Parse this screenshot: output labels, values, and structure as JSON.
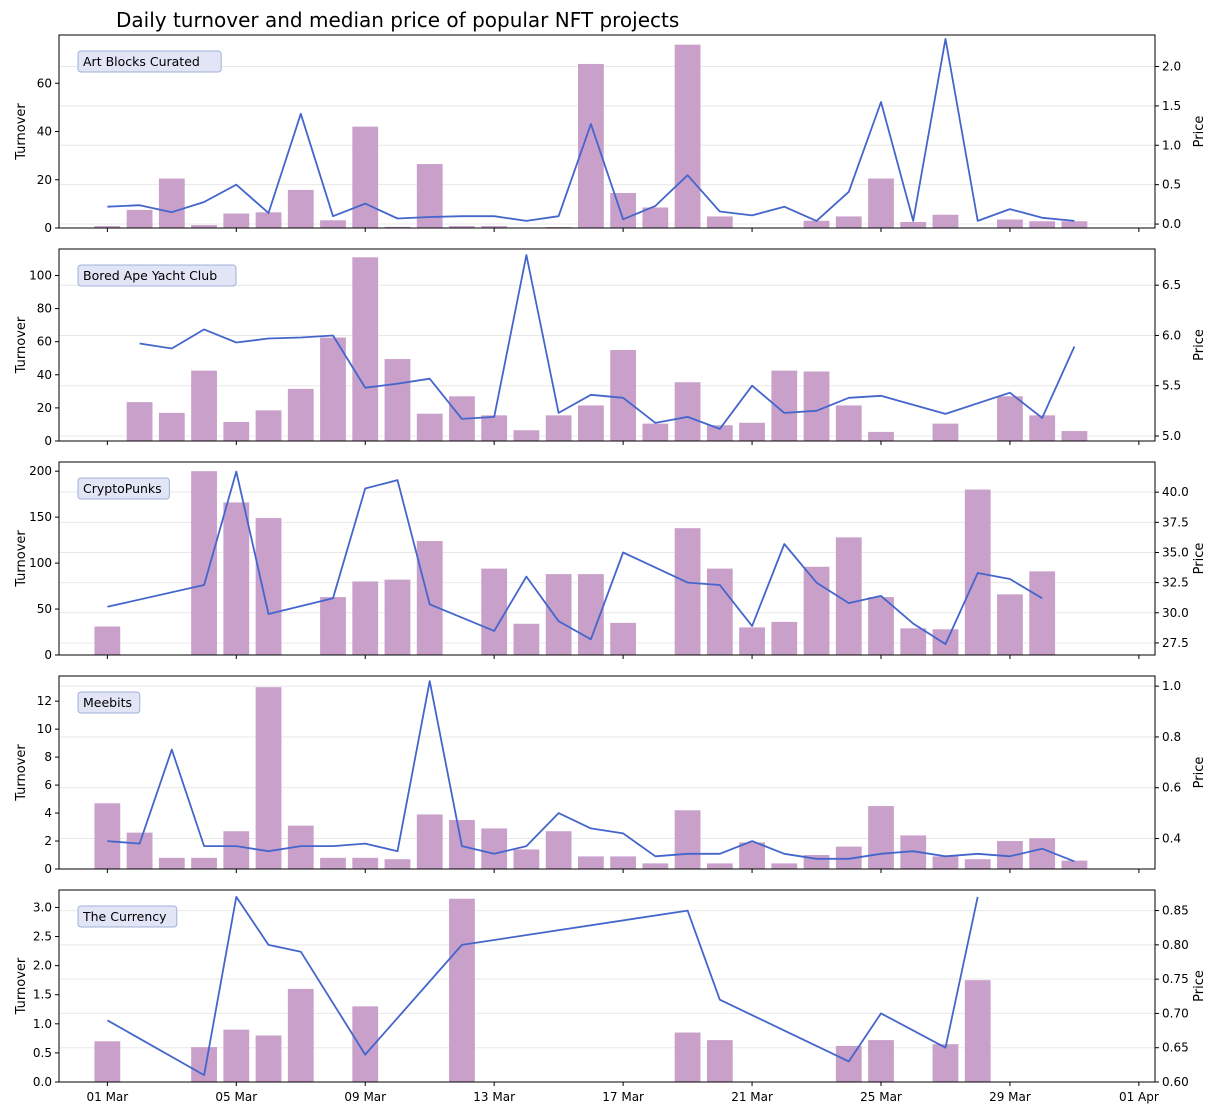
{
  "title": "Daily turnover and median price of popular NFT projects",
  "chart_data": [
    {
      "type": "bar",
      "label": "Art Blocks Curated",
      "ylabel": "Turnover",
      "y2label": "Price",
      "ylim": [
        0,
        80
      ],
      "yticks": [
        0,
        20,
        40,
        60
      ],
      "y2lim": [
        -0.05,
        2.4
      ],
      "y2ticks": [
        "0.0",
        "0.5",
        "1.0",
        "1.5",
        "2.0"
      ],
      "turnover": [
        [
          1,
          0.8
        ],
        [
          2,
          7.5
        ],
        [
          3,
          20.5
        ],
        [
          4,
          1.2
        ],
        [
          5,
          6
        ],
        [
          6,
          6.5
        ],
        [
          7,
          15.8
        ],
        [
          8,
          3.2
        ],
        [
          9,
          42
        ],
        [
          10,
          0.5
        ],
        [
          11,
          26.5
        ],
        [
          12,
          0.8
        ],
        [
          13,
          0.8
        ],
        [
          15,
          0.4
        ],
        [
          16,
          68
        ],
        [
          17,
          14.5
        ],
        [
          18,
          8.5
        ],
        [
          19,
          76
        ],
        [
          20,
          4.8
        ],
        [
          22,
          0.2
        ],
        [
          23,
          3
        ],
        [
          24,
          4.8
        ],
        [
          25,
          20.5
        ],
        [
          26,
          2.5
        ],
        [
          27,
          5.5
        ],
        [
          29,
          3.5
        ],
        [
          30,
          2.8
        ],
        [
          31,
          2.8
        ]
      ],
      "price": [
        [
          1,
          0.22
        ],
        [
          2,
          0.24
        ],
        [
          3,
          0.15
        ],
        [
          4,
          0.28
        ],
        [
          5,
          0.5
        ],
        [
          6,
          0.14
        ],
        [
          7,
          1.4
        ],
        [
          8,
          0.1
        ],
        [
          9,
          0.26
        ],
        [
          10,
          0.07
        ],
        [
          11,
          0.09
        ],
        [
          12,
          0.1
        ],
        [
          13,
          0.1
        ],
        [
          14,
          0.04
        ],
        [
          15,
          0.1
        ],
        [
          16,
          1.27
        ],
        [
          17,
          0.06
        ],
        [
          18,
          0.23
        ],
        [
          19,
          0.62
        ],
        [
          20,
          0.16
        ],
        [
          21,
          0.11
        ],
        [
          22,
          0.22
        ],
        [
          23,
          0.04
        ],
        [
          24,
          0.41
        ],
        [
          25,
          1.55
        ],
        [
          26,
          0.04
        ],
        [
          27,
          2.35
        ],
        [
          28,
          0.04
        ],
        [
          29,
          0.19
        ],
        [
          30,
          0.08
        ],
        [
          31,
          0.04
        ]
      ]
    },
    {
      "type": "bar",
      "label": "Bored Ape Yacht Club",
      "ylabel": "Turnover",
      "y2label": "Price",
      "ylim": [
        0,
        116
      ],
      "yticks": [
        0,
        20,
        40,
        60,
        80,
        100
      ],
      "y2lim": [
        4.95,
        6.86
      ],
      "y2ticks": [
        "5.0",
        "5.5",
        "6.0",
        "6.5"
      ],
      "turnover": [
        [
          2,
          23.5
        ],
        [
          3,
          17
        ],
        [
          4,
          42.5
        ],
        [
          5,
          11.5
        ],
        [
          6,
          18.5
        ],
        [
          7,
          31.5
        ],
        [
          8,
          62.5
        ],
        [
          9,
          111
        ],
        [
          10,
          49.5
        ],
        [
          11,
          16.5
        ],
        [
          12,
          27
        ],
        [
          13,
          15.5
        ],
        [
          14,
          6.5
        ],
        [
          15,
          15.5
        ],
        [
          16,
          21.5
        ],
        [
          17,
          55
        ],
        [
          18,
          10.5
        ],
        [
          19,
          35.5
        ],
        [
          20,
          9.5
        ],
        [
          21,
          11
        ],
        [
          22,
          42.5
        ],
        [
          23,
          42
        ],
        [
          24,
          21.5
        ],
        [
          25,
          5.5
        ],
        [
          27,
          10.5
        ],
        [
          29,
          27
        ],
        [
          30,
          15.5
        ],
        [
          31,
          6
        ]
      ],
      "price": [
        [
          2,
          5.92
        ],
        [
          3,
          5.87
        ],
        [
          4,
          6.06
        ],
        [
          5,
          5.93
        ],
        [
          6,
          5.97
        ],
        [
          7,
          5.98
        ],
        [
          8,
          6
        ],
        [
          9,
          5.48
        ],
        [
          10,
          5.52
        ],
        [
          11,
          5.57
        ],
        [
          12,
          5.17
        ],
        [
          13,
          5.19
        ],
        [
          14,
          6.8
        ],
        [
          15,
          5.23
        ],
        [
          16,
          5.41
        ],
        [
          17,
          5.38
        ],
        [
          18,
          5.13
        ],
        [
          19,
          5.19
        ],
        [
          20,
          5.07
        ],
        [
          21,
          5.5
        ],
        [
          22,
          5.23
        ],
        [
          23,
          5.25
        ],
        [
          24,
          5.38
        ],
        [
          25,
          5.4
        ],
        [
          27,
          5.22
        ],
        [
          29,
          5.43
        ],
        [
          30,
          5.18
        ],
        [
          31,
          5.89
        ]
      ]
    },
    {
      "type": "bar",
      "label": "CryptoPunks",
      "ylabel": "Turnover",
      "y2label": "Price",
      "ylim": [
        0,
        210
      ],
      "yticks": [
        0,
        50,
        100,
        150,
        200
      ],
      "y2lim": [
        26.5,
        42.5
      ],
      "y2ticks": [
        "27.5",
        "30.0",
        "32.5",
        "35.0",
        "37.5",
        "40.0"
      ],
      "turnover": [
        [
          1,
          31
        ],
        [
          4,
          200
        ],
        [
          5,
          166
        ],
        [
          6,
          149
        ],
        [
          8,
          63
        ],
        [
          9,
          80
        ],
        [
          10,
          82
        ],
        [
          11,
          124
        ],
        [
          13,
          94
        ],
        [
          14,
          34
        ],
        [
          15,
          88
        ],
        [
          16,
          88
        ],
        [
          17,
          35
        ],
        [
          19,
          138
        ],
        [
          20,
          94
        ],
        [
          21,
          30
        ],
        [
          22,
          36
        ],
        [
          23,
          96
        ],
        [
          24,
          128
        ],
        [
          25,
          63
        ],
        [
          26,
          29
        ],
        [
          27,
          28
        ],
        [
          28,
          180
        ],
        [
          29,
          66
        ],
        [
          30,
          91
        ]
      ],
      "price": [
        [
          1,
          30.5
        ],
        [
          4,
          32.3
        ],
        [
          5,
          41.7
        ],
        [
          6,
          29.9
        ],
        [
          8,
          31.2
        ],
        [
          9,
          40.3
        ],
        [
          10,
          41
        ],
        [
          11,
          30.7
        ],
        [
          13,
          28.5
        ],
        [
          14,
          33
        ],
        [
          15,
          29.3
        ],
        [
          16,
          27.8
        ],
        [
          17,
          35
        ],
        [
          19,
          32.5
        ],
        [
          20,
          32.3
        ],
        [
          21,
          28.9
        ],
        [
          22,
          35.7
        ],
        [
          23,
          32.5
        ],
        [
          24,
          30.8
        ],
        [
          25,
          31.4
        ],
        [
          26,
          29.1
        ],
        [
          27,
          27.4
        ],
        [
          28,
          33.3
        ],
        [
          29,
          32.8
        ],
        [
          30,
          31.2
        ]
      ]
    },
    {
      "type": "bar",
      "label": "Meebits",
      "ylabel": "Turnover",
      "y2label": "Price",
      "ylim": [
        0,
        13.8
      ],
      "yticks": [
        0,
        2,
        4,
        6,
        8,
        10,
        12
      ],
      "y2lim": [
        0.28,
        1.04
      ],
      "y2ticks": [
        "0.4",
        "0.6",
        "0.8",
        "1.0"
      ],
      "turnover": [
        [
          1,
          4.7
        ],
        [
          2,
          2.6
        ],
        [
          3,
          0.8
        ],
        [
          4,
          0.8
        ],
        [
          5,
          2.7
        ],
        [
          6,
          13
        ],
        [
          7,
          3.1
        ],
        [
          8,
          0.8
        ],
        [
          9,
          0.8
        ],
        [
          10,
          0.7
        ],
        [
          11,
          3.9
        ],
        [
          12,
          3.5
        ],
        [
          13,
          2.9
        ],
        [
          14,
          1.4
        ],
        [
          15,
          2.7
        ],
        [
          16,
          0.9
        ],
        [
          17,
          0.9
        ],
        [
          18,
          0.4
        ],
        [
          19,
          4.2
        ],
        [
          20,
          0.4
        ],
        [
          21,
          1.9
        ],
        [
          22,
          0.4
        ],
        [
          23,
          1
        ],
        [
          24,
          1.6
        ],
        [
          25,
          4.5
        ],
        [
          26,
          2.4
        ],
        [
          27,
          0.9
        ],
        [
          28,
          0.7
        ],
        [
          29,
          2
        ],
        [
          30,
          2.2
        ],
        [
          31,
          0.6
        ]
      ],
      "price": [
        [
          1,
          0.39
        ],
        [
          2,
          0.38
        ],
        [
          3,
          0.75
        ],
        [
          4,
          0.37
        ],
        [
          5,
          0.37
        ],
        [
          6,
          0.35
        ],
        [
          7,
          0.37
        ],
        [
          8,
          0.37
        ],
        [
          9,
          0.38
        ],
        [
          10,
          0.35
        ],
        [
          11,
          1.02
        ],
        [
          12,
          0.37
        ],
        [
          13,
          0.34
        ],
        [
          14,
          0.37
        ],
        [
          15,
          0.5
        ],
        [
          16,
          0.44
        ],
        [
          17,
          0.42
        ],
        [
          18,
          0.33
        ],
        [
          19,
          0.34
        ],
        [
          20,
          0.34
        ],
        [
          21,
          0.39
        ],
        [
          22,
          0.34
        ],
        [
          23,
          0.32
        ],
        [
          24,
          0.32
        ],
        [
          25,
          0.34
        ],
        [
          26,
          0.35
        ],
        [
          27,
          0.33
        ],
        [
          28,
          0.34
        ],
        [
          29,
          0.33
        ],
        [
          30,
          0.36
        ],
        [
          31,
          0.31
        ]
      ]
    },
    {
      "type": "bar",
      "label": "The Currency",
      "ylabel": "Turnover",
      "y2label": "Price",
      "ylim": [
        0,
        3.3
      ],
      "yticks": [
        "0.0",
        "0.5",
        "1.0",
        "1.5",
        "2.0",
        "2.5",
        "3.0"
      ],
      "y2lim": [
        0.6,
        0.88
      ],
      "y2ticks": [
        "0.60",
        "0.65",
        "0.70",
        "0.75",
        "0.80",
        "0.85"
      ],
      "turnover": [
        [
          1,
          0.7
        ],
        [
          4,
          0.6
        ],
        [
          5,
          0.9
        ],
        [
          6,
          0.8
        ],
        [
          7,
          1.6
        ],
        [
          9,
          1.3
        ],
        [
          12,
          3.15
        ],
        [
          19,
          0.85
        ],
        [
          20,
          0.72
        ],
        [
          24,
          0.62
        ],
        [
          25,
          0.72
        ],
        [
          27,
          0.65
        ],
        [
          28,
          1.75
        ]
      ],
      "price": [
        [
          1,
          0.69
        ],
        [
          4,
          0.61
        ],
        [
          5,
          0.87
        ],
        [
          6,
          0.8
        ],
        [
          7,
          0.79
        ],
        [
          9,
          0.64
        ],
        [
          12,
          0.8
        ],
        [
          19,
          0.85
        ],
        [
          20,
          0.72
        ],
        [
          24,
          0.63
        ],
        [
          25,
          0.7
        ],
        [
          27,
          0.65
        ],
        [
          28,
          0.87
        ]
      ]
    }
  ],
  "xaxis": {
    "ticks": [
      [
        1,
        "01 Mar"
      ],
      [
        5,
        "05 Mar"
      ],
      [
        9,
        "09 Mar"
      ],
      [
        13,
        "13 Mar"
      ],
      [
        17,
        "17 Mar"
      ],
      [
        21,
        "21 Mar"
      ],
      [
        25,
        "25 Mar"
      ],
      [
        29,
        "29 Mar"
      ],
      [
        33,
        "01 Apr"
      ]
    ],
    "xlim": [
      -0.5,
      33.5
    ]
  },
  "colors": {
    "bar": "#c8a0ca",
    "line": "#4466cc",
    "legend_bg": "#e2e5f6",
    "legend_edge": "#9fb0d8"
  }
}
